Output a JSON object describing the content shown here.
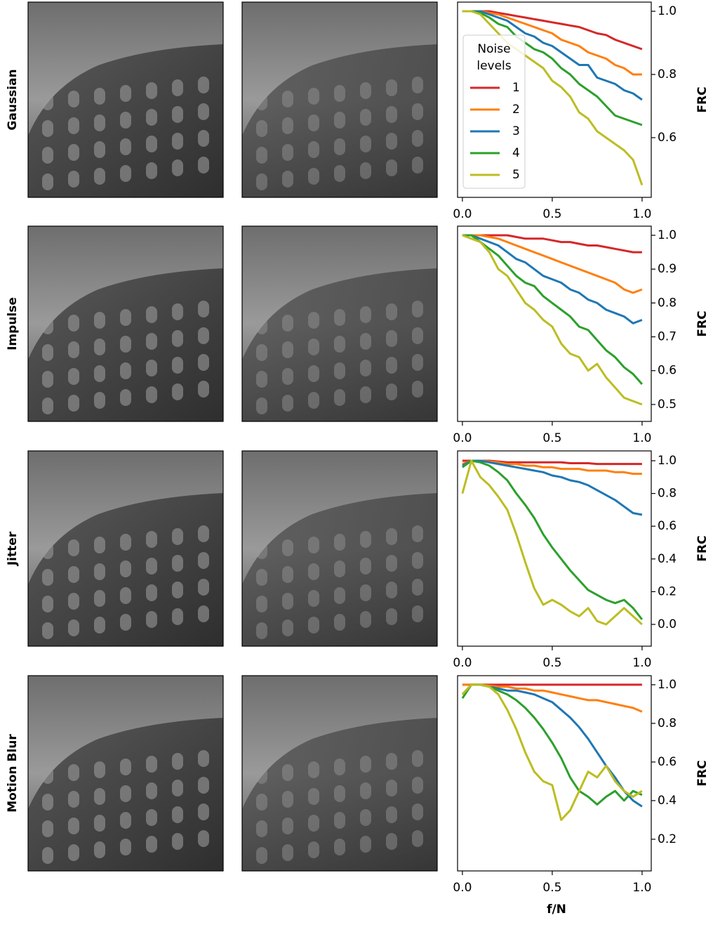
{
  "chart_data": [
    {
      "type": "line",
      "title": "Gaussian",
      "ylabel": "FRC",
      "legend": "left",
      "legend_title": [
        "Noise",
        "levels"
      ],
      "x": [
        0,
        0.05,
        0.1,
        0.15,
        0.2,
        0.25,
        0.3,
        0.35,
        0.4,
        0.45,
        0.5,
        0.55,
        0.6,
        0.65,
        0.7,
        0.75,
        0.8,
        0.85,
        0.9,
        0.95,
        1.0
      ],
      "xlim": [
        -0.027,
        1.051
      ],
      "xticks": [
        {
          "value": 0,
          "label": "0.0"
        },
        0.5,
        {
          "value": 1,
          "label": "1.0"
        }
      ],
      "ylim": [
        0.411,
        1.029
      ],
      "yticks": [
        {
          "value": 0.6,
          "label": "0.6"
        },
        {
          "value": 0.8,
          "label": "0.8"
        },
        {
          "value": 1.0,
          "label": "1.0"
        }
      ],
      "series": [
        {
          "name": "1",
          "color": "#d62728",
          "values": [
            1,
            1,
            1,
            1,
            0.995,
            0.99,
            0.985,
            0.98,
            0.975,
            0.97,
            0.965,
            0.96,
            0.955,
            0.95,
            0.94,
            0.93,
            0.925,
            0.91,
            0.9,
            0.89,
            0.88
          ]
        },
        {
          "name": "2",
          "color": "#ff7f0e",
          "values": [
            1,
            1,
            1,
            0.995,
            0.99,
            0.98,
            0.97,
            0.96,
            0.95,
            0.94,
            0.93,
            0.91,
            0.9,
            0.89,
            0.87,
            0.86,
            0.85,
            0.83,
            0.82,
            0.8,
            0.8
          ]
        },
        {
          "name": "3",
          "color": "#1f77b4",
          "values": [
            1,
            1,
            1,
            0.99,
            0.98,
            0.97,
            0.95,
            0.93,
            0.92,
            0.9,
            0.89,
            0.87,
            0.85,
            0.83,
            0.83,
            0.79,
            0.78,
            0.77,
            0.75,
            0.74,
            0.72
          ]
        },
        {
          "name": "4",
          "color": "#2ca02c",
          "values": [
            1,
            1,
            0.995,
            0.98,
            0.96,
            0.95,
            0.92,
            0.9,
            0.88,
            0.87,
            0.85,
            0.82,
            0.8,
            0.77,
            0.75,
            0.73,
            0.7,
            0.67,
            0.66,
            0.65,
            0.64
          ]
        },
        {
          "name": "5",
          "color": "#bcbd22",
          "values": [
            1,
            1,
            0.99,
            0.96,
            0.93,
            0.9,
            0.88,
            0.86,
            0.84,
            0.82,
            0.78,
            0.76,
            0.73,
            0.68,
            0.66,
            0.62,
            0.6,
            0.58,
            0.56,
            0.53,
            0.45
          ]
        }
      ]
    },
    {
      "type": "line",
      "title": "Impulse",
      "ylabel": "FRC",
      "x": [
        0,
        0.05,
        0.1,
        0.15,
        0.2,
        0.25,
        0.3,
        0.35,
        0.4,
        0.45,
        0.5,
        0.55,
        0.6,
        0.65,
        0.7,
        0.75,
        0.8,
        0.85,
        0.9,
        0.95,
        1.0
      ],
      "xlim": [
        -0.027,
        1.051
      ],
      "xticks": [
        {
          "value": 0,
          "label": "0.0"
        },
        0.5,
        {
          "value": 1,
          "label": "1.0"
        }
      ],
      "ylim": [
        0.45,
        1.027
      ],
      "yticks": [
        0.5,
        0.6,
        0.7,
        0.8,
        0.9,
        {
          "value": 1.0,
          "label": "1.0"
        }
      ],
      "series": [
        {
          "name": "1",
          "color": "#d62728",
          "values": [
            1,
            1,
            1,
            1,
            1,
            1,
            0.995,
            0.99,
            0.99,
            0.99,
            0.985,
            0.98,
            0.98,
            0.975,
            0.97,
            0.97,
            0.965,
            0.96,
            0.955,
            0.95,
            0.95
          ]
        },
        {
          "name": "2",
          "color": "#ff7f0e",
          "values": [
            1,
            1,
            1,
            0.995,
            0.99,
            0.98,
            0.97,
            0.96,
            0.95,
            0.94,
            0.93,
            0.92,
            0.91,
            0.9,
            0.89,
            0.88,
            0.87,
            0.86,
            0.84,
            0.83,
            0.84
          ]
        },
        {
          "name": "3",
          "color": "#1f77b4",
          "values": [
            1,
            1,
            0.99,
            0.98,
            0.97,
            0.95,
            0.93,
            0.92,
            0.9,
            0.88,
            0.87,
            0.86,
            0.84,
            0.83,
            0.81,
            0.8,
            0.78,
            0.77,
            0.76,
            0.74,
            0.75
          ]
        },
        {
          "name": "4",
          "color": "#2ca02c",
          "values": [
            1,
            1,
            0.98,
            0.96,
            0.94,
            0.91,
            0.88,
            0.86,
            0.85,
            0.82,
            0.8,
            0.78,
            0.76,
            0.73,
            0.72,
            0.69,
            0.66,
            0.64,
            0.61,
            0.59,
            0.56
          ]
        },
        {
          "name": "5",
          "color": "#bcbd22",
          "values": [
            1,
            0.99,
            0.98,
            0.95,
            0.9,
            0.88,
            0.84,
            0.8,
            0.78,
            0.75,
            0.73,
            0.68,
            0.65,
            0.64,
            0.6,
            0.62,
            0.58,
            0.55,
            0.52,
            0.51,
            0.5
          ]
        }
      ]
    },
    {
      "type": "line",
      "title": "Jitter",
      "ylabel": "FRC",
      "x": [
        0,
        0.05,
        0.1,
        0.15,
        0.2,
        0.25,
        0.3,
        0.35,
        0.4,
        0.45,
        0.5,
        0.55,
        0.6,
        0.65,
        0.7,
        0.75,
        0.8,
        0.85,
        0.9,
        0.95,
        1.0
      ],
      "xlim": [
        -0.027,
        1.051
      ],
      "xticks": [
        {
          "value": 0,
          "label": "0.0"
        },
        0.5,
        {
          "value": 1,
          "label": "1.0"
        }
      ],
      "ylim": [
        -0.133,
        1.06
      ],
      "yticks": [
        {
          "value": 0.0,
          "label": "0.0"
        },
        0.2,
        0.4,
        0.6,
        0.8,
        {
          "value": 1.0,
          "label": "1.0"
        }
      ],
      "series": [
        {
          "name": "1",
          "color": "#d62728",
          "values": [
            1,
            1,
            1,
            1,
            0.995,
            0.99,
            0.99,
            0.99,
            0.99,
            0.99,
            0.99,
            0.99,
            0.985,
            0.985,
            0.985,
            0.98,
            0.98,
            0.98,
            0.98,
            0.98,
            0.98
          ]
        },
        {
          "name": "2",
          "color": "#ff7f0e",
          "values": [
            0.98,
            1,
            1,
            0.995,
            0.99,
            0.98,
            0.98,
            0.97,
            0.97,
            0.96,
            0.96,
            0.95,
            0.95,
            0.95,
            0.94,
            0.94,
            0.94,
            0.93,
            0.93,
            0.92,
            0.92
          ]
        },
        {
          "name": "3",
          "color": "#1f77b4",
          "values": [
            0.97,
            1,
            1,
            0.99,
            0.98,
            0.97,
            0.96,
            0.95,
            0.94,
            0.93,
            0.91,
            0.9,
            0.88,
            0.87,
            0.85,
            0.82,
            0.79,
            0.76,
            0.72,
            0.68,
            0.67
          ]
        },
        {
          "name": "4",
          "color": "#2ca02c",
          "values": [
            0.96,
            1,
            0.99,
            0.97,
            0.93,
            0.88,
            0.8,
            0.73,
            0.65,
            0.55,
            0.47,
            0.4,
            0.33,
            0.27,
            0.21,
            0.18,
            0.15,
            0.13,
            0.15,
            0.1,
            0.03
          ]
        },
        {
          "name": "5",
          "color": "#bcbd22",
          "values": [
            0.8,
            1,
            0.9,
            0.85,
            0.78,
            0.7,
            0.55,
            0.38,
            0.22,
            0.12,
            0.15,
            0.12,
            0.08,
            0.05,
            0.1,
            0.02,
            0.0,
            0.05,
            0.1,
            0.05,
            0.0
          ]
        }
      ]
    },
    {
      "type": "line",
      "title": "Motion Blur",
      "ylabel": "FRC",
      "xlabel": "f/N",
      "x": [
        0,
        0.05,
        0.1,
        0.15,
        0.2,
        0.25,
        0.3,
        0.35,
        0.4,
        0.45,
        0.5,
        0.55,
        0.6,
        0.65,
        0.7,
        0.75,
        0.8,
        0.85,
        0.9,
        0.95,
        1.0
      ],
      "xlim": [
        -0.027,
        1.051
      ],
      "xticks": [
        {
          "value": 0,
          "label": "0.0"
        },
        0.5,
        {
          "value": 1,
          "label": "1.0"
        }
      ],
      "ylim": [
        0.036,
        1.047
      ],
      "yticks": [
        0.2,
        0.4,
        0.6,
        0.8,
        {
          "value": 1.0,
          "label": "1.0"
        }
      ],
      "series": [
        {
          "name": "1",
          "color": "#d62728",
          "values": [
            1,
            1,
            1,
            1,
            1,
            1,
            1,
            1,
            1,
            1,
            1,
            1,
            1,
            1,
            1,
            1,
            1,
            1,
            1,
            1,
            1
          ]
        },
        {
          "name": "2",
          "color": "#ff7f0e",
          "values": [
            1,
            1,
            1,
            0.995,
            0.99,
            0.99,
            0.98,
            0.98,
            0.97,
            0.97,
            0.96,
            0.95,
            0.94,
            0.93,
            0.92,
            0.92,
            0.91,
            0.9,
            0.89,
            0.88,
            0.86
          ]
        },
        {
          "name": "3",
          "color": "#1f77b4",
          "values": [
            0.95,
            1,
            1,
            0.99,
            0.98,
            0.97,
            0.97,
            0.96,
            0.95,
            0.93,
            0.91,
            0.87,
            0.83,
            0.78,
            0.72,
            0.65,
            0.58,
            0.52,
            0.45,
            0.4,
            0.37
          ]
        },
        {
          "name": "4",
          "color": "#2ca02c",
          "values": [
            0.93,
            1,
            1,
            0.99,
            0.97,
            0.95,
            0.92,
            0.88,
            0.83,
            0.77,
            0.7,
            0.62,
            0.52,
            0.45,
            0.42,
            0.38,
            0.42,
            0.45,
            0.4,
            0.45,
            0.43
          ]
        },
        {
          "name": "5",
          "color": "#bcbd22",
          "values": [
            0.95,
            1,
            1,
            0.99,
            0.95,
            0.87,
            0.77,
            0.65,
            0.55,
            0.5,
            0.48,
            0.3,
            0.35,
            0.45,
            0.55,
            0.52,
            0.58,
            0.5,
            0.45,
            0.42,
            0.45
          ]
        }
      ]
    }
  ]
}
